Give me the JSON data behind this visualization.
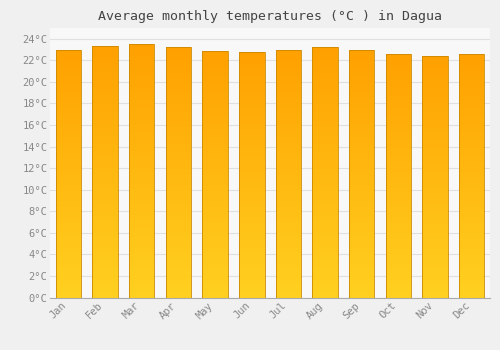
{
  "months": [
    "Jan",
    "Feb",
    "Mar",
    "Apr",
    "May",
    "Jun",
    "Jul",
    "Aug",
    "Sep",
    "Oct",
    "Nov",
    "Dec"
  ],
  "values": [
    23.0,
    23.3,
    23.5,
    23.2,
    22.9,
    22.8,
    23.0,
    23.2,
    23.0,
    22.6,
    22.4,
    22.6
  ],
  "bar_color_bottom": "#FFD020",
  "bar_color_top": "#FFA000",
  "bar_border_color": "#CC8800",
  "title": "Average monthly temperatures (°C ) in Dagua",
  "ylim": [
    0,
    25
  ],
  "ytick_values": [
    0,
    2,
    4,
    6,
    8,
    10,
    12,
    14,
    16,
    18,
    20,
    22,
    24
  ],
  "background_color": "#f0f0f0",
  "plot_bg_color": "#f8f8f8",
  "grid_color": "#e0e0e0",
  "title_fontsize": 9.5,
  "tick_fontsize": 7.5,
  "tick_color": "#888888",
  "bar_width": 0.7
}
